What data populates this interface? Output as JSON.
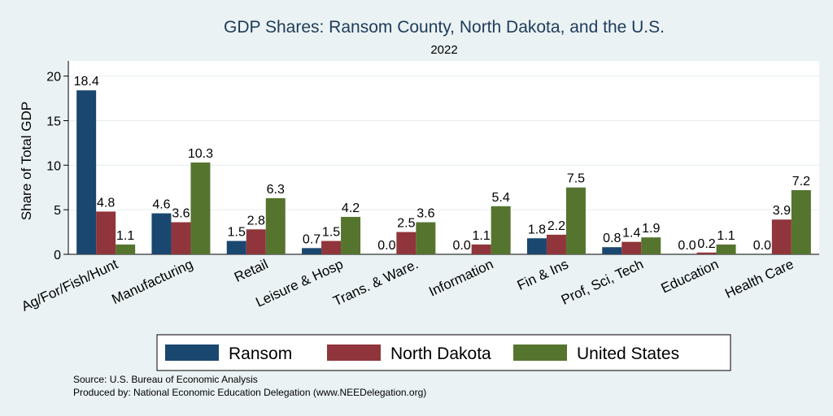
{
  "chart_data": {
    "type": "bar",
    "title": "GDP Shares: Ransom County, North Dakota, and the U.S.",
    "subtitle": "2022",
    "ylabel": "Share of Total GDP",
    "xlabel": "",
    "ylim": [
      0,
      21.7
    ],
    "yticks": [
      0,
      5,
      10,
      15,
      20
    ],
    "categories": [
      "Ag/For/Fish/Hunt",
      "Manufacturing",
      "Retail",
      "Leisure & Hosp",
      "Trans. & Ware.",
      "Information",
      "Fin & Ins",
      "Prof, Sci, Tech",
      "Education",
      "Health Care"
    ],
    "series": [
      {
        "name": "Ransom",
        "color": "#1a476f",
        "values": [
          18.4,
          4.6,
          1.5,
          0.7,
          0.0,
          0.0,
          1.8,
          0.8,
          0.0,
          0.0
        ],
        "labels": [
          "18.4",
          "4.6",
          "1.5",
          "0.7",
          "0.0",
          "0.0",
          "1.8",
          "0.8",
          "0.0",
          "0.0"
        ]
      },
      {
        "name": "North Dakota",
        "color": "#90353b",
        "values": [
          4.8,
          3.6,
          2.8,
          1.5,
          2.5,
          1.1,
          2.2,
          1.4,
          0.2,
          3.9
        ],
        "labels": [
          "4.8",
          "3.6",
          "2.8",
          "1.5",
          "2.5",
          "1.1",
          "2.2",
          "1.4",
          "0.2",
          "3.9"
        ]
      },
      {
        "name": "United States",
        "color": "#55752f",
        "values": [
          1.1,
          10.3,
          6.3,
          4.2,
          3.6,
          5.4,
          7.5,
          1.9,
          1.1,
          7.2
        ],
        "labels": [
          "1.1",
          "10.3",
          "6.3",
          "4.2",
          "3.6",
          "5.4",
          "7.5",
          "1.9",
          "1.1",
          "7.2"
        ]
      }
    ],
    "legend": {
      "position": "bottom"
    },
    "grid": true,
    "source": "Source: U.S. Bureau of Economic Analysis",
    "produced_by": "Produced by: National Economic Education Delegation (www.NEEDelegation.org)"
  }
}
